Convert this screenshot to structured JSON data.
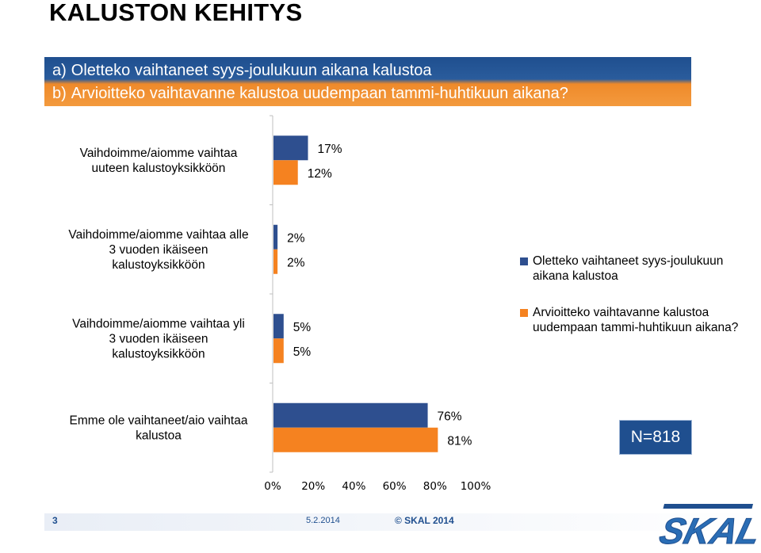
{
  "page": {
    "title": "KALUSTON KEHITYS",
    "question_a_prefix": "a)",
    "question_a": "Oletteko vaihtaneet syys-joulukuun aikana kalustoa",
    "question_b_prefix": "b)",
    "question_b": "Arvioitteko vaihtavanne kalustoa uudempaan tammi-huhtikuun aikana?",
    "n_label": "N=818",
    "footer_page": "3",
    "footer_date": "5.2.2014",
    "footer_copyright": "© SKAL 2014",
    "logo_text": "SKAL"
  },
  "colors": {
    "series_a": "#2e4f8f",
    "series_b": "#f58220",
    "banner_blue": "#1f4f8f",
    "banner_orange": "#f39a3e"
  },
  "chart_data": {
    "type": "bar",
    "orientation": "horizontal",
    "categories": [
      [
        "Vaihdoimme/aiomme vaihtaa",
        "uuteen kalustoyksikköön"
      ],
      [
        "Vaihdoimme/aiomme vaihtaa alle",
        "3 vuoden ikäiseen",
        "kalustoyksikköön"
      ],
      [
        "Vaihdoimme/aiomme vaihtaa yli",
        "3 vuoden ikäiseen",
        "kalustoyksikköön"
      ],
      [
        "Emme ole vaihtaneet/aio vaihtaa",
        "kalustoa"
      ]
    ],
    "series": [
      {
        "name": "Oletteko vaihtaneet syys-joulukuun aikana kalustoa",
        "values": [
          17,
          2,
          5,
          76
        ],
        "labels": [
          "17%",
          "2%",
          "5%",
          "76%"
        ]
      },
      {
        "name": "Arvioitteko vaihtavanne kalustoa uudempaan tammi-huhtikuun aikana?",
        "values": [
          12,
          2,
          5,
          81
        ],
        "labels": [
          "12%",
          "2%",
          "5%",
          "81%"
        ]
      }
    ],
    "xlim": [
      0,
      100
    ],
    "x_ticks": [
      "0%",
      "20%",
      "40%",
      "60%",
      "80%",
      "100%"
    ],
    "legend_position": "right",
    "grid": false
  }
}
